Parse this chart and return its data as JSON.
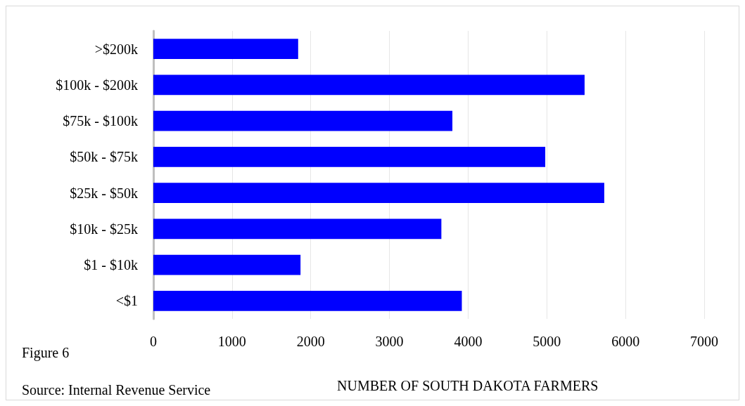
{
  "chart_data": {
    "type": "bar",
    "orientation": "horizontal",
    "categories": [
      ">$200k",
      "$100k - $200k",
      "$75k - $100k",
      "$50k - $75k",
      "$25k - $50k",
      "$10k - $25k",
      "$1 - $10k",
      "<$1"
    ],
    "values": [
      1840,
      5480,
      3800,
      4980,
      5730,
      3660,
      1870,
      3920
    ],
    "color": "#0000ff",
    "xlabel": "NUMBER OF SOUTH DAKOTA FARMERS",
    "xlim": [
      0,
      7000
    ],
    "xticks": [
      0,
      1000,
      2000,
      3000,
      4000,
      5000,
      6000,
      7000
    ],
    "grid": "x",
    "annotations": [
      "Figure 6",
      "Source: Internal Revenue Service"
    ]
  }
}
